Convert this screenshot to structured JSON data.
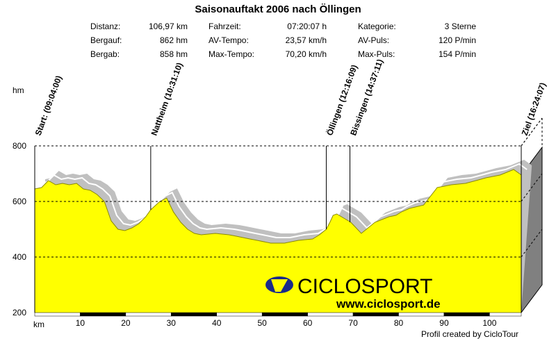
{
  "title": "Saisonauftakt 2006 nach Öllingen",
  "stats": [
    [
      {
        "label": "Distanz:",
        "value": "106,97 km"
      },
      {
        "label": "Fahrzeit:",
        "value": "07:20:07 h"
      },
      {
        "label": "Kategorie:",
        "value": "3 Sterne"
      }
    ],
    [
      {
        "label": "Bergauf:",
        "value": "862 hm"
      },
      {
        "label": "AV-Tempo:",
        "value": "23,57 km/h"
      },
      {
        "label": "AV-Puls:",
        "value": "120 P/min"
      }
    ],
    [
      {
        "label": "Bergab:",
        "value": "858 hm"
      },
      {
        "label": "Max-Tempo:",
        "value": "70,20 km/h"
      },
      {
        "label": "Max-Puls:",
        "value": "154 P/min"
      }
    ]
  ],
  "footer": "Profil created by CicloTour",
  "logo": {
    "name": "CICLOSPORT",
    "url": "www.ciclosport.de"
  },
  "colors": {
    "fill": "#ffff00",
    "shadow": "#c0c0c0",
    "side": "#808080"
  },
  "chart_data": {
    "type": "area",
    "title": "Saisonauftakt 2006 nach Öllingen",
    "xlabel": "km",
    "ylabel": "hm",
    "xlim": [
      0,
      106.97
    ],
    "ylim": [
      200,
      800
    ],
    "xticks": [
      10,
      20,
      30,
      40,
      50,
      60,
      70,
      80,
      90,
      100
    ],
    "yticks": [
      200,
      400,
      600,
      800
    ],
    "x": [
      0,
      1.5,
      3,
      4.6,
      6.1,
      7.6,
      9.2,
      10.7,
      12.2,
      13.7,
      15.3,
      16.8,
      18.3,
      19.8,
      21.4,
      22.9,
      24.4,
      25.5,
      27.5,
      29,
      30.5,
      32.1,
      33.6,
      35.1,
      36.6,
      39.7,
      42.7,
      44.3,
      47.3,
      48.9,
      51.9,
      54.9,
      58,
      61.1,
      62.6,
      64.1,
      64.9,
      65.6,
      66.4,
      69.5,
      71.8,
      74.8,
      77.9,
      79.4,
      80.6,
      82.4,
      85.5,
      88.5,
      91.6,
      94.7,
      97,
      99.2,
      102.3,
      105.3,
      107
    ],
    "y": [
      645,
      650,
      675,
      660,
      665,
      660,
      665,
      645,
      640,
      625,
      600,
      530,
      500,
      495,
      505,
      520,
      545,
      570,
      600,
      612,
      562,
      525,
      500,
      485,
      480,
      485,
      480,
      475,
      465,
      460,
      450,
      450,
      460,
      465,
      480,
      500,
      525,
      550,
      555,
      525,
      485,
      525,
      545,
      550,
      562,
      575,
      587,
      650,
      660,
      665,
      675,
      685,
      695,
      715,
      695
    ],
    "markers": [
      {
        "label": "Start: (09:04:00)",
        "km": 0
      },
      {
        "label": "Nattheim (10:31:10)",
        "km": 25.5
      },
      {
        "label": "Öllingen (12:16:09)",
        "km": 64.1
      },
      {
        "label": "Bissingen (14:37:11)",
        "km": 69.3
      },
      {
        "label": "Ziel (16:24:07)",
        "km": 106.97
      }
    ]
  }
}
